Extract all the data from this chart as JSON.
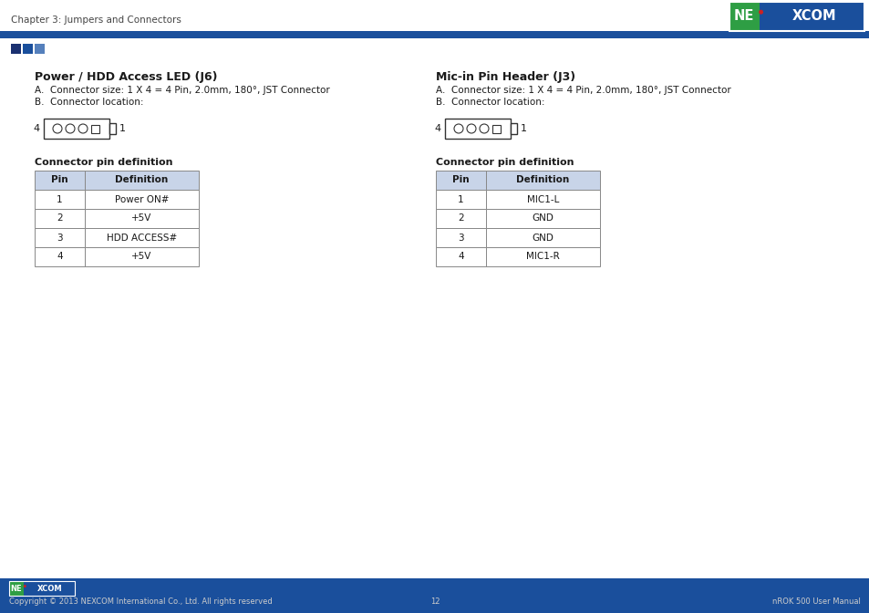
{
  "page_title": "Chapter 3: Jumpers and Connectors",
  "section1_title": "Power / HDD Access LED (J6)",
  "section2_title": "Mic-in Pin Header (J3)",
  "connector_desc_a": "A.  Connector size: 1 X 4 = 4 Pin, 2.0mm, 180°, JST Connector",
  "connector_desc_b": "B.  Connector location:",
  "table1_title": "Connector pin definition",
  "table2_title": "Connector pin definition",
  "table_header": [
    "Pin",
    "Definition"
  ],
  "table1_rows": [
    [
      "1",
      "Power ON#"
    ],
    [
      "2",
      "+5V"
    ],
    [
      "3",
      "HDD ACCESS#"
    ],
    [
      "4",
      "+5V"
    ]
  ],
  "table2_rows": [
    [
      "1",
      "MIC1-L"
    ],
    [
      "2",
      "GND"
    ],
    [
      "3",
      "GND"
    ],
    [
      "4",
      "MIC1-R"
    ]
  ],
  "footer_copyright": "Copyright © 2013 NEXCOM International Co., Ltd. All rights reserved",
  "footer_page": "12",
  "footer_right": "nROK 500 User Manual",
  "nexcom_blue": "#1a4f9c",
  "nexcom_green": "#2e9e44",
  "nexcom_red": "#cc2222",
  "top_line_color": "#1a4f9c",
  "table_header_bg": "#c8d4e8",
  "footer_bg": "#1a4f9c",
  "sq1_color": "#1a3070",
  "sq2_color": "#1a4f9c",
  "sq3_color": "#5580bc",
  "bg_color": "#ffffff",
  "text_dark": "#1a1a1a",
  "text_gray": "#444444",
  "border_color": "#888888"
}
